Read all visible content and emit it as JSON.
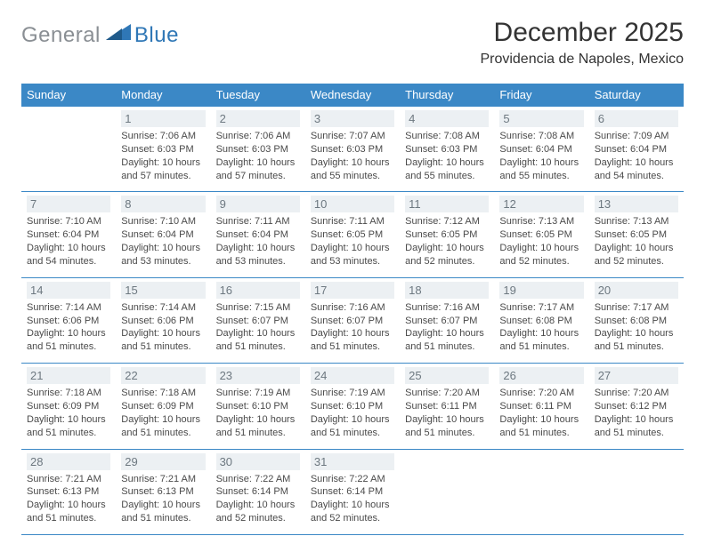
{
  "logo": {
    "text_gray": "General",
    "text_blue": "Blue"
  },
  "title": "December 2025",
  "location": "Providencia de Napoles, Mexico",
  "colors": {
    "header_bg": "#3b88c6",
    "header_text": "#ffffff",
    "row_border": "#3b88c6",
    "daynum_bg": "#ecf0f3",
    "daynum_text": "#6d7880",
    "body_text": "#4a4a4a",
    "logo_gray": "#8a8f94",
    "logo_blue": "#2f77b6"
  },
  "days_of_week": [
    "Sunday",
    "Monday",
    "Tuesday",
    "Wednesday",
    "Thursday",
    "Friday",
    "Saturday"
  ],
  "weeks": [
    [
      null,
      {
        "n": "1",
        "sr": "7:06 AM",
        "ss": "6:03 PM",
        "dl": "10 hours and 57 minutes."
      },
      {
        "n": "2",
        "sr": "7:06 AM",
        "ss": "6:03 PM",
        "dl": "10 hours and 57 minutes."
      },
      {
        "n": "3",
        "sr": "7:07 AM",
        "ss": "6:03 PM",
        "dl": "10 hours and 55 minutes."
      },
      {
        "n": "4",
        "sr": "7:08 AM",
        "ss": "6:03 PM",
        "dl": "10 hours and 55 minutes."
      },
      {
        "n": "5",
        "sr": "7:08 AM",
        "ss": "6:04 PM",
        "dl": "10 hours and 55 minutes."
      },
      {
        "n": "6",
        "sr": "7:09 AM",
        "ss": "6:04 PM",
        "dl": "10 hours and 54 minutes."
      }
    ],
    [
      {
        "n": "7",
        "sr": "7:10 AM",
        "ss": "6:04 PM",
        "dl": "10 hours and 54 minutes."
      },
      {
        "n": "8",
        "sr": "7:10 AM",
        "ss": "6:04 PM",
        "dl": "10 hours and 53 minutes."
      },
      {
        "n": "9",
        "sr": "7:11 AM",
        "ss": "6:04 PM",
        "dl": "10 hours and 53 minutes."
      },
      {
        "n": "10",
        "sr": "7:11 AM",
        "ss": "6:05 PM",
        "dl": "10 hours and 53 minutes."
      },
      {
        "n": "11",
        "sr": "7:12 AM",
        "ss": "6:05 PM",
        "dl": "10 hours and 52 minutes."
      },
      {
        "n": "12",
        "sr": "7:13 AM",
        "ss": "6:05 PM",
        "dl": "10 hours and 52 minutes."
      },
      {
        "n": "13",
        "sr": "7:13 AM",
        "ss": "6:05 PM",
        "dl": "10 hours and 52 minutes."
      }
    ],
    [
      {
        "n": "14",
        "sr": "7:14 AM",
        "ss": "6:06 PM",
        "dl": "10 hours and 51 minutes."
      },
      {
        "n": "15",
        "sr": "7:14 AM",
        "ss": "6:06 PM",
        "dl": "10 hours and 51 minutes."
      },
      {
        "n": "16",
        "sr": "7:15 AM",
        "ss": "6:07 PM",
        "dl": "10 hours and 51 minutes."
      },
      {
        "n": "17",
        "sr": "7:16 AM",
        "ss": "6:07 PM",
        "dl": "10 hours and 51 minutes."
      },
      {
        "n": "18",
        "sr": "7:16 AM",
        "ss": "6:07 PM",
        "dl": "10 hours and 51 minutes."
      },
      {
        "n": "19",
        "sr": "7:17 AM",
        "ss": "6:08 PM",
        "dl": "10 hours and 51 minutes."
      },
      {
        "n": "20",
        "sr": "7:17 AM",
        "ss": "6:08 PM",
        "dl": "10 hours and 51 minutes."
      }
    ],
    [
      {
        "n": "21",
        "sr": "7:18 AM",
        "ss": "6:09 PM",
        "dl": "10 hours and 51 minutes."
      },
      {
        "n": "22",
        "sr": "7:18 AM",
        "ss": "6:09 PM",
        "dl": "10 hours and 51 minutes."
      },
      {
        "n": "23",
        "sr": "7:19 AM",
        "ss": "6:10 PM",
        "dl": "10 hours and 51 minutes."
      },
      {
        "n": "24",
        "sr": "7:19 AM",
        "ss": "6:10 PM",
        "dl": "10 hours and 51 minutes."
      },
      {
        "n": "25",
        "sr": "7:20 AM",
        "ss": "6:11 PM",
        "dl": "10 hours and 51 minutes."
      },
      {
        "n": "26",
        "sr": "7:20 AM",
        "ss": "6:11 PM",
        "dl": "10 hours and 51 minutes."
      },
      {
        "n": "27",
        "sr": "7:20 AM",
        "ss": "6:12 PM",
        "dl": "10 hours and 51 minutes."
      }
    ],
    [
      {
        "n": "28",
        "sr": "7:21 AM",
        "ss": "6:13 PM",
        "dl": "10 hours and 51 minutes."
      },
      {
        "n": "29",
        "sr": "7:21 AM",
        "ss": "6:13 PM",
        "dl": "10 hours and 51 minutes."
      },
      {
        "n": "30",
        "sr": "7:22 AM",
        "ss": "6:14 PM",
        "dl": "10 hours and 52 minutes."
      },
      {
        "n": "31",
        "sr": "7:22 AM",
        "ss": "6:14 PM",
        "dl": "10 hours and 52 minutes."
      },
      null,
      null,
      null
    ]
  ],
  "labels": {
    "sunrise": "Sunrise:",
    "sunset": "Sunset:",
    "daylight": "Daylight:"
  }
}
